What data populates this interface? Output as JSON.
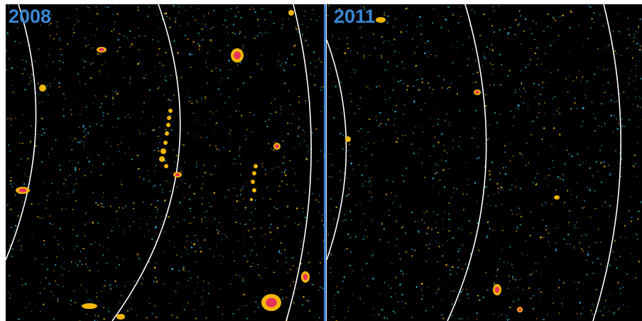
{
  "panels": [
    {
      "year": "2008"
    },
    {
      "year": "2011"
    }
  ],
  "colors": {
    "label": "#3a86d4",
    "divider": "#3a7fd0",
    "background": "#000000",
    "arc": "#ffffff",
    "positive": "#f2b705",
    "negative": "#2fb6d6",
    "strong": "#e8335a"
  }
}
